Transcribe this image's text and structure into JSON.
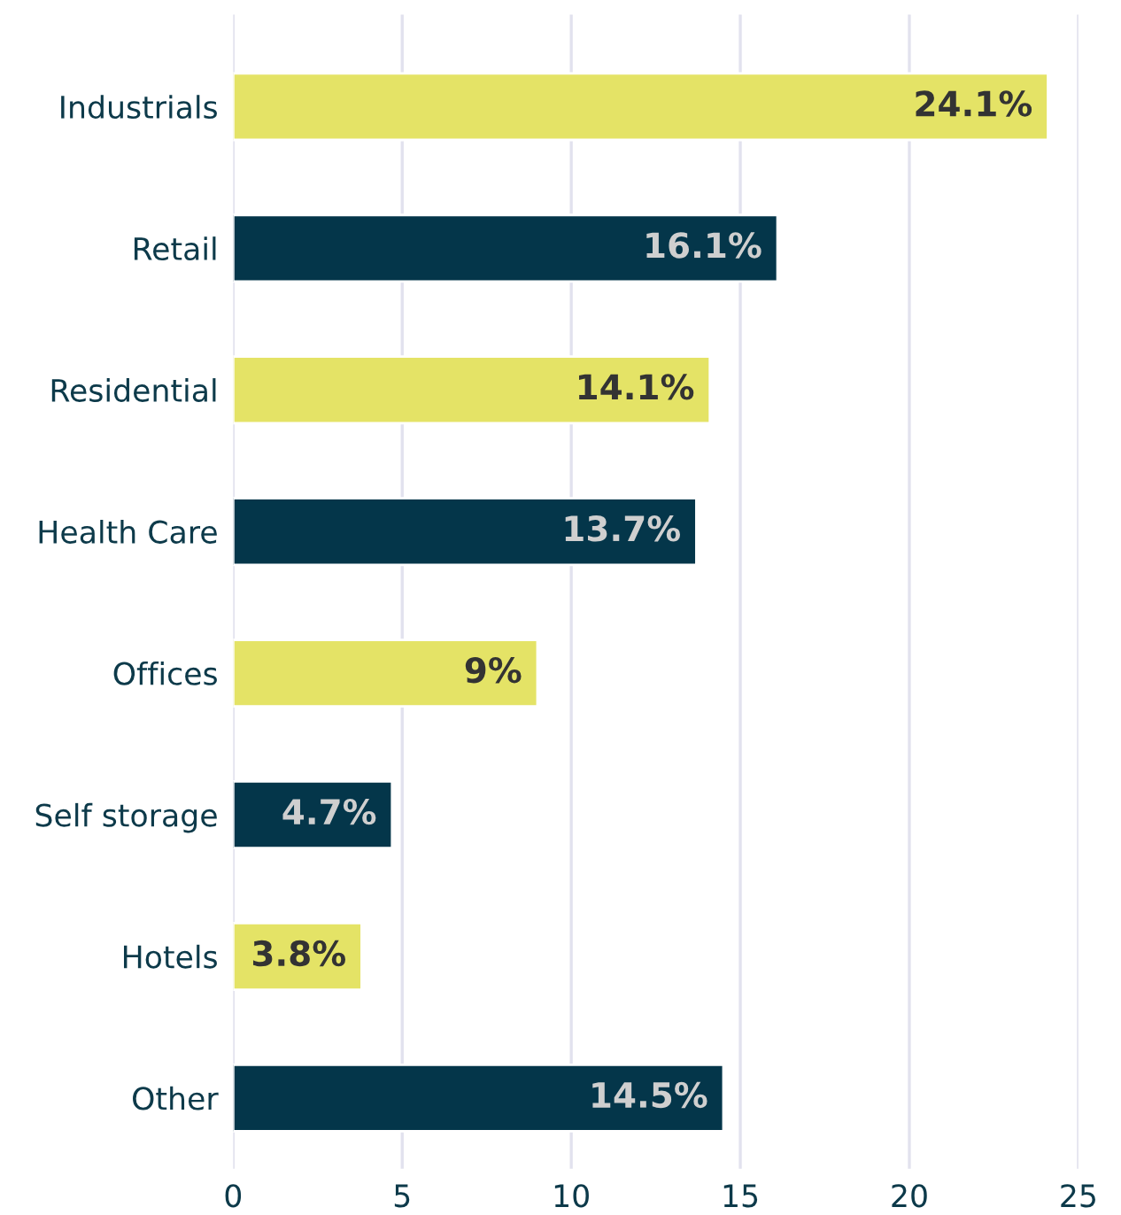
{
  "chart_data": {
    "type": "bar",
    "orientation": "horizontal",
    "categories": [
      "Industrials",
      "Retail",
      "Residential",
      "Health Care",
      "Offices",
      "Self storage",
      "Hotels",
      "Other"
    ],
    "values": [
      24.1,
      16.1,
      14.1,
      13.7,
      9,
      4.7,
      3.8,
      14.5
    ],
    "colors": [
      "#e4e366",
      "#04364a",
      "#e4e366",
      "#04364a",
      "#e4e366",
      "#04364a",
      "#e4e366",
      "#04364a"
    ],
    "value_labels": [
      "24.1%",
      "16.1%",
      "14.1%",
      "13.7%",
      "9%",
      "4.7%",
      "3.8%",
      "14.5%"
    ],
    "xlim": [
      0,
      25
    ],
    "xticks": [
      0,
      5,
      10,
      15,
      20,
      25
    ],
    "grid": "x",
    "legend": false
  }
}
